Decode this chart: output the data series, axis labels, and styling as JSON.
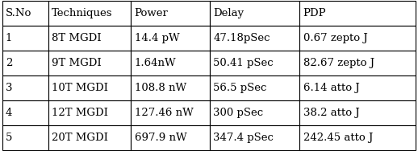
{
  "columns": [
    "S.No",
    "Techniques",
    "Power",
    "Delay",
    "PDP"
  ],
  "rows": [
    [
      "1",
      "8T MGDI",
      "14.4 pW",
      "47.18pSec",
      "0.67 zepto J"
    ],
    [
      "2",
      "9T MGDI",
      "1.64nW",
      "50.41 pSec",
      "82.67 zepto J"
    ],
    [
      "3",
      "10T MGDI",
      "108.8 nW",
      "56.5 pSec",
      "6.14 atto J"
    ],
    [
      "4",
      "12T MGDI",
      "127.46 nW",
      "300 pSec",
      "38.2 atto J"
    ],
    [
      "5",
      "20T MGDI",
      "697.9 nW",
      "347.4 pSec",
      "242.45 atto J"
    ]
  ],
  "col_widths": [
    0.62,
    1.1,
    1.05,
    1.2,
    1.55
  ],
  "header_bg": "#ffffff",
  "text_color": "#000000",
  "border_color": "#000000",
  "font_size": 9.5,
  "figsize": [
    5.18,
    1.88
  ],
  "dpi": 100
}
